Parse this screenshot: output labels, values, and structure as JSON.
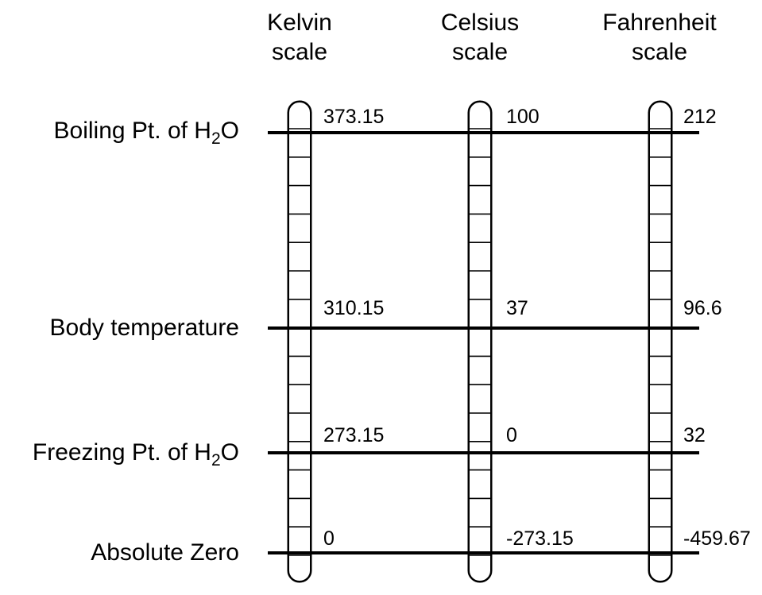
{
  "scales": [
    {
      "title_line1": "Kelvin",
      "title_line2": "scale",
      "values": [
        "373.15",
        "310.15",
        "273.15",
        "0"
      ]
    },
    {
      "title_line1": "Celsius",
      "title_line2": "scale",
      "values": [
        "100",
        "37",
        "0",
        "-273.15"
      ]
    },
    {
      "title_line1": "Fahrenheit",
      "title_line2": "scale",
      "values": [
        "212",
        "96.6",
        "32",
        "-459.67"
      ]
    }
  ],
  "rows": [
    {
      "label": "Boiling Pt. of  H",
      "subscript": "2",
      "suffix": "O"
    },
    {
      "label": "Body temperature",
      "subscript": "",
      "suffix": ""
    },
    {
      "label": "Freezing Pt. of  H",
      "subscript": "2",
      "suffix": "O"
    },
    {
      "label": "Absolute Zero",
      "subscript": "",
      "suffix": ""
    }
  ]
}
